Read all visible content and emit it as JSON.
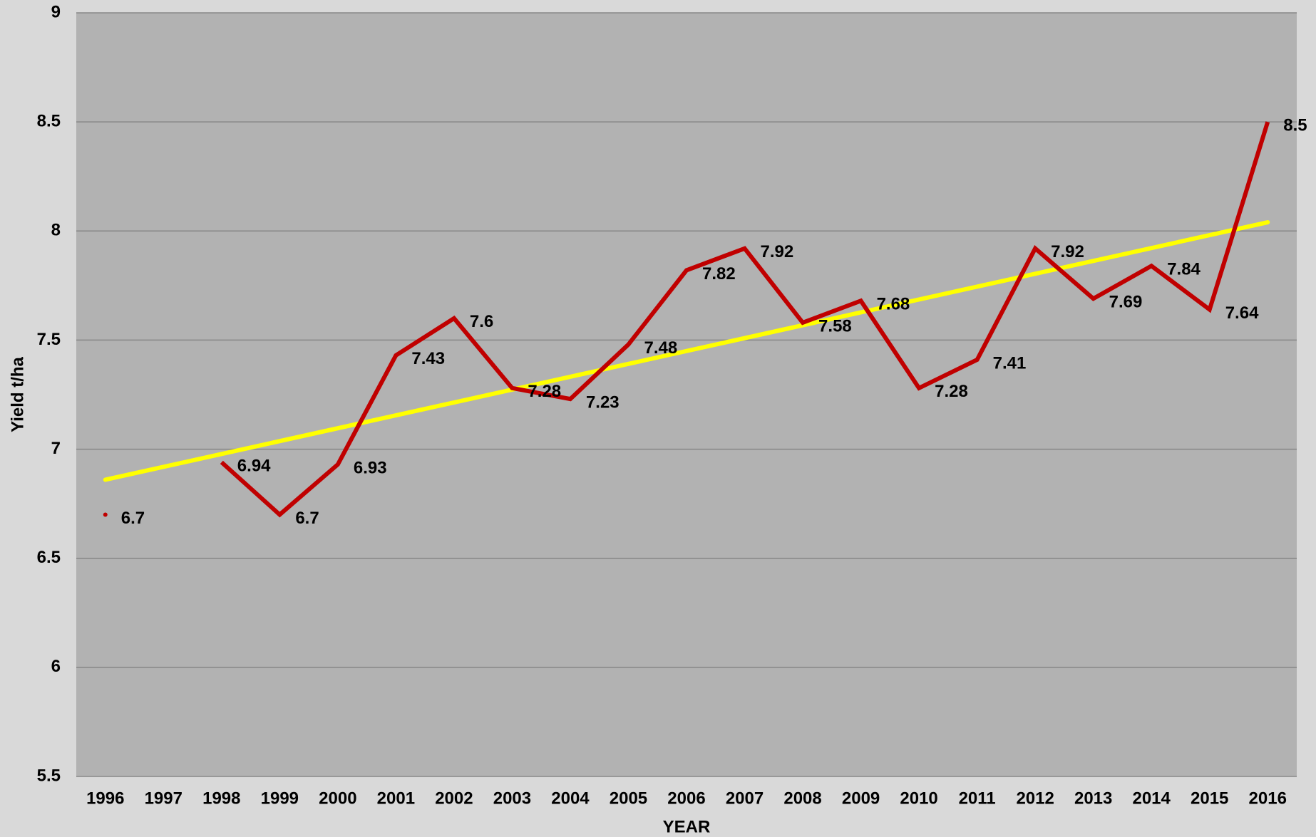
{
  "chart_data": {
    "type": "line",
    "x_label": "YEAR",
    "y_label": "Yield t/ha",
    "categories": [
      "1996",
      "1997",
      "1998",
      "1999",
      "2000",
      "2001",
      "2002",
      "2003",
      "2004",
      "2005",
      "2006",
      "2007",
      "2008",
      "2009",
      "2010",
      "2011",
      "2012",
      "2013",
      "2014",
      "2015",
      "2016"
    ],
    "series": [
      {
        "color": "#c00000",
        "values": [
          6.7,
          null,
          6.94,
          6.7,
          6.93,
          7.43,
          7.6,
          7.28,
          7.23,
          7.48,
          7.82,
          7.92,
          7.58,
          7.68,
          7.28,
          7.41,
          7.92,
          7.69,
          7.84,
          7.64,
          8.5
        ]
      }
    ],
    "trendline": {
      "color": "#ffff00",
      "values": [
        6.86,
        8.04
      ]
    },
    "ylim": [
      5.5,
      9
    ],
    "yticks": [
      5.5,
      6,
      6.5,
      7,
      7.5,
      8,
      8.5,
      9
    ],
    "grid": true
  }
}
